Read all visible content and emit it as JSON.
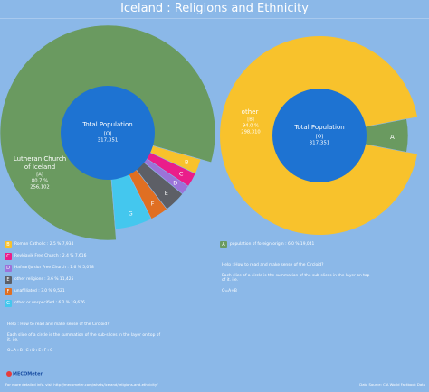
{
  "title": "Iceland : Religions and Ethnicity",
  "colors": {
    "background": "#8bb8e8",
    "center": "#1e73d2",
    "lutheran": "#6a9a60",
    "other_ethnic": "#f8c22c",
    "foreign_origin": "#6a9a60"
  },
  "chart_data": [
    {
      "type": "pie",
      "center": {
        "lines": [
          "Total Population",
          "[O]",
          "317,351"
        ]
      },
      "slices": [
        {
          "key": "A",
          "label": "Lutheran Church of Iceland",
          "percent": 80.7,
          "count": "256,102",
          "color": "#6a9a60"
        },
        {
          "key": "B",
          "label": "Roman Catholic",
          "percent": 2.5,
          "count": "7,934",
          "color": "#f8c22c"
        },
        {
          "key": "C",
          "label": "Reykjavik Free Church",
          "percent": 2.4,
          "count": "7,616",
          "color": "#ea1e8a"
        },
        {
          "key": "D",
          "label": "Hafnarfjordur Free Church",
          "percent": 1.6,
          "count": "5,078",
          "color": "#9b73d8"
        },
        {
          "key": "E",
          "label": "other religions",
          "percent": 3.6,
          "count": "11,425",
          "color": "#5d5f66"
        },
        {
          "key": "F",
          "label": "unaffiliated",
          "percent": 3.0,
          "count": "9,521",
          "color": "#e06f22"
        },
        {
          "key": "G",
          "label": "other or unspecified",
          "percent": 6.2,
          "count": "19,676",
          "color": "#44c7ee"
        }
      ],
      "label_A": [
        "Lutheran Church",
        "of Iceland",
        "[A]",
        "80.7 %",
        "256,102"
      ]
    },
    {
      "type": "pie",
      "center": {
        "lines": [
          "Total Population",
          "[O]",
          "317,351"
        ]
      },
      "slices": [
        {
          "key": "B",
          "label": "other",
          "percent": 94.0,
          "count": "298,310",
          "color": "#f8c22c"
        },
        {
          "key": "A",
          "label": "population of foreign origin",
          "percent": 6.0,
          "count": "19,041",
          "color": "#6a9a60"
        }
      ],
      "label_B": [
        "other",
        "[B]",
        "94.0 %",
        "298,310"
      ]
    }
  ],
  "legend_left": [
    {
      "key": "B",
      "text": "Roman Catholic : 2.5 %  7,934",
      "color": "#f8c22c"
    },
    {
      "key": "C",
      "text": "Reykjavik Free Church : 2.4 %  7,616",
      "color": "#ea1e8a"
    },
    {
      "key": "D",
      "text": "Hafnarfjordur Free Church : 1.6 %  5,078",
      "color": "#9b73d8"
    },
    {
      "key": "E",
      "text": "other religions : 3.6 %  11,425",
      "color": "#5d5f66"
    },
    {
      "key": "F",
      "text": "unaffiliated : 3.0 %  9,521",
      "color": "#e06f22"
    },
    {
      "key": "G",
      "text": "other or unspecified : 6.2 %  19,676",
      "color": "#44c7ee"
    }
  ],
  "legend_right": [
    {
      "key": "A",
      "text": "population of foreign origin : 6.0 %  19,041",
      "color": "#6a9a60"
    }
  ],
  "help_left": [
    "Help : How to read and make sense of the Circloid?",
    "Each slice of a circle is the summation of the sub-slices in the layer on top of it. i.e.",
    "O=A+B+C+D+E+F+G"
  ],
  "help_right": [
    "Help : How to read and make sense of the Circloid?",
    "Each slice of a circle is the summation of the sub-slices in the layer on top of it. i.e.",
    "O=A+B"
  ],
  "footer": {
    "logo": "MECOMeter",
    "link": "For more detailed info. visit http://mecometer.com/whats/iceland/religions-and-ethnicity/",
    "source": "Data Source: CIA World Factbook Data"
  }
}
